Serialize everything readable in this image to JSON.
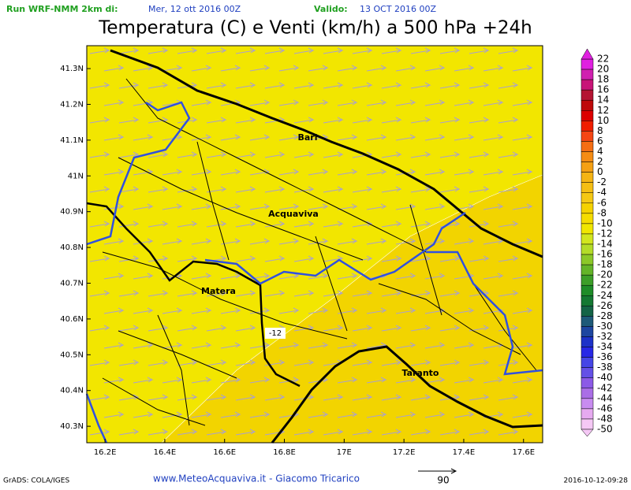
{
  "header": {
    "run_label": "Run WRF-NMM 2km di:",
    "run_date": "Mer, 12 ott 2016 00Z",
    "valid_label": "Valido:",
    "valid_date": "13 OCT 2016 00Z"
  },
  "map": {
    "title": "Temperatura (C) e Venti (km/h) a 500 hPa +24h",
    "xlim": [
      16.139,
      17.664
    ],
    "ylim": [
      40.254,
      41.364
    ],
    "xticks": [
      {
        "value": 16.2,
        "label": "16.2E"
      },
      {
        "value": 16.4,
        "label": "16.4E"
      },
      {
        "value": 16.6,
        "label": "16.6E"
      },
      {
        "value": 16.8,
        "label": "16.8E"
      },
      {
        "value": 17,
        "label": "17E"
      },
      {
        "value": 17.2,
        "label": "17.2E"
      },
      {
        "value": 17.4,
        "label": "17.4E"
      },
      {
        "value": 17.6,
        "label": "17.6E"
      }
    ],
    "yticks": [
      {
        "value": 41.3,
        "label": "41.3N"
      },
      {
        "value": 41.2,
        "label": "41.2N"
      },
      {
        "value": 41.1,
        "label": "41.1N"
      },
      {
        "value": 41,
        "label": "41N"
      },
      {
        "value": 40.9,
        "label": "40.9N"
      },
      {
        "value": 40.8,
        "label": "40.8N"
      },
      {
        "value": 40.7,
        "label": "40.7N"
      },
      {
        "value": 40.6,
        "label": "40.6N"
      },
      {
        "value": 40.5,
        "label": "40.5N"
      },
      {
        "value": 40.4,
        "label": "40.4N"
      },
      {
        "value": 40.3,
        "label": "40.3N"
      }
    ],
    "places": [
      "Bari",
      "Acquaviva",
      "Matera",
      "Taranto"
    ],
    "contour_label": -12
  },
  "colorbar": {
    "levels": [
      22,
      20,
      18,
      16,
      14,
      12,
      10,
      8,
      6,
      4,
      2,
      0,
      -2,
      -4,
      -6,
      -8,
      -10,
      -12,
      -14,
      -16,
      -18,
      -20,
      -22,
      -24,
      -26,
      -28,
      -30,
      -32,
      -34,
      -36,
      -38,
      -40,
      -42,
      -44,
      -46,
      -48,
      -50
    ],
    "colors": [
      "#e020e0",
      "#d020b0",
      "#c81478",
      "#b41432",
      "#be0a0a",
      "#dc0000",
      "#f01e00",
      "#f54614",
      "#f56e14",
      "#f58c14",
      "#f5a014",
      "#f5b414",
      "#f5be14",
      "#f5c814",
      "#f5d200",
      "#f5dc00",
      "#f0e600",
      "#d2e61e",
      "#b4dc28",
      "#8cc828",
      "#64b428",
      "#3c9e28",
      "#1e8c28",
      "#147832",
      "#146446",
      "#1e5a78",
      "#1e46a0",
      "#1e32c8",
      "#2828e6",
      "#4646e6",
      "#6450e6",
      "#8c5ae6",
      "#aa6ee6",
      "#c88cf0",
      "#e6aaf0",
      "#f5c8f5"
    ]
  },
  "vector_reference": 90,
  "footer": {
    "software": "GrADS: COLA/IGES",
    "credit": "www.MeteoAcquaviva.it - Giacomo Tricarico",
    "timestamp": "2016-10-12-09:28"
  }
}
